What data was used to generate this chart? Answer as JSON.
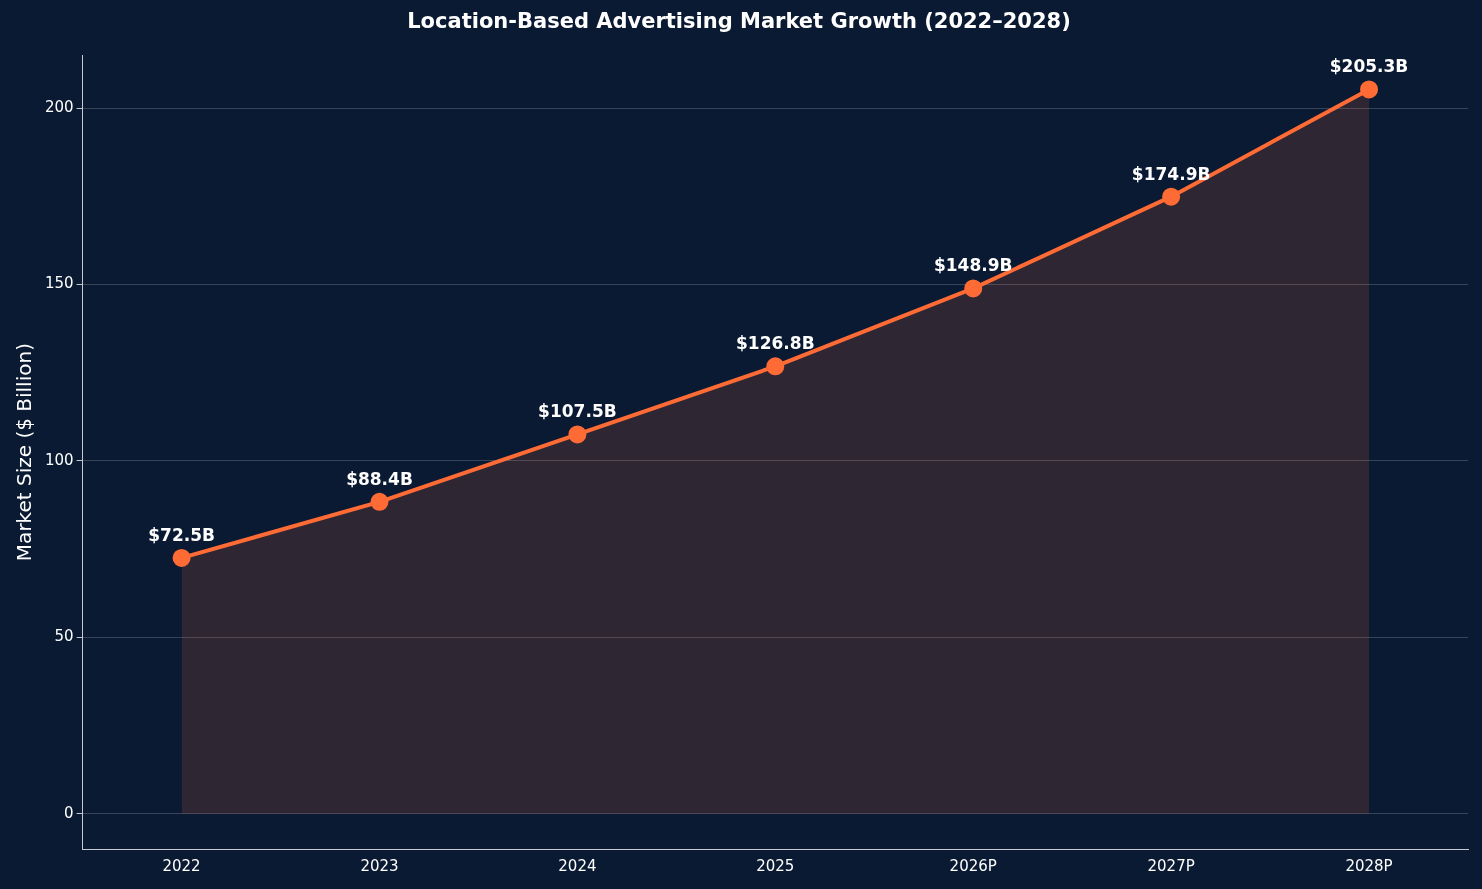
{
  "chart_data": {
    "type": "area",
    "title": "Location-Based Advertising Market Growth (2022–2028)",
    "ylabel": "Market Size ($ Billion)",
    "categories": [
      "2022",
      "2023",
      "2024",
      "2025",
      "2026P",
      "2027P",
      "2028P"
    ],
    "series": [
      {
        "color": "#ff6b35",
        "values": [
          72.5,
          88.4,
          107.5,
          126.8,
          148.9,
          174.9,
          205.3
        ],
        "value_labels": [
          "$72.5B",
          "$88.4B",
          "$107.5B",
          "$126.8B",
          "$148.9B",
          "$174.9B",
          "$205.3B"
        ]
      }
    ],
    "ylim": [
      -10,
      215
    ],
    "yticks": [
      0,
      50,
      100,
      150,
      200
    ],
    "grid": "y",
    "legend": false,
    "marker": "circle",
    "line_style": "solid"
  }
}
